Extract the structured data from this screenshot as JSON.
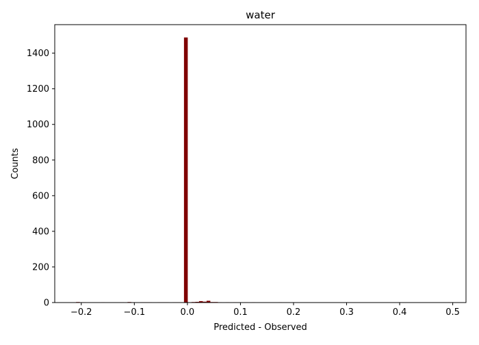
{
  "chart_data": {
    "type": "histogram",
    "title": "water",
    "xlabel": "Predicted - Observed",
    "ylabel": "Counts",
    "xlim": [
      -0.25,
      0.525
    ],
    "ylim": [
      0,
      1560
    ],
    "xticks": [
      -0.2,
      -0.1,
      0.0,
      0.1,
      0.2,
      0.3,
      0.4,
      0.5
    ],
    "xtick_labels": [
      "−0.2",
      "−0.1",
      "0.0",
      "0.1",
      "0.2",
      "0.3",
      "0.4",
      "0.5"
    ],
    "yticks": [
      0,
      200,
      400,
      600,
      800,
      1000,
      1200,
      1400
    ],
    "ytick_labels": [
      "0",
      "200",
      "400",
      "600",
      "800",
      "1000",
      "1200",
      "1400"
    ],
    "grid": false,
    "bar_color": "#800000",
    "bin_width": 0.0071,
    "bins": [
      {
        "x": -0.2063,
        "count": 3
      },
      {
        "x": -0.1956,
        "count": 2
      },
      {
        "x": -0.159,
        "count": 2
      },
      {
        "x": -0.1235,
        "count": 2
      },
      {
        "x": -0.1093,
        "count": 3
      },
      {
        "x": -0.1022,
        "count": 2
      },
      {
        "x": -0.0845,
        "count": 2
      },
      {
        "x": -0.0774,
        "count": 2
      },
      {
        "x": -0.0703,
        "count": 2
      },
      {
        "x": -0.0526,
        "count": 2
      },
      {
        "x": -0.0455,
        "count": 2
      },
      {
        "x": -0.0384,
        "count": 2
      },
      {
        "x": -0.0242,
        "count": 2
      },
      {
        "x": -0.0171,
        "count": 2
      },
      {
        "x": -0.01,
        "count": 2
      },
      {
        "x": -0.0029,
        "count": 1488
      },
      {
        "x": 0.0042,
        "count": 2
      },
      {
        "x": 0.0113,
        "count": 3
      },
      {
        "x": 0.0184,
        "count": 4
      },
      {
        "x": 0.0255,
        "count": 8
      },
      {
        "x": 0.0326,
        "count": 5
      },
      {
        "x": 0.0397,
        "count": 10
      },
      {
        "x": 0.0468,
        "count": 3
      },
      {
        "x": 0.0539,
        "count": 3
      },
      {
        "x": 0.061,
        "count": 2
      },
      {
        "x": 0.0752,
        "count": 2
      },
      {
        "x": 0.0894,
        "count": 2
      },
      {
        "x": 0.1107,
        "count": 2
      },
      {
        "x": 0.1249,
        "count": 2
      },
      {
        "x": 0.1746,
        "count": 2
      },
      {
        "x": 0.4945,
        "count": 2
      }
    ]
  }
}
